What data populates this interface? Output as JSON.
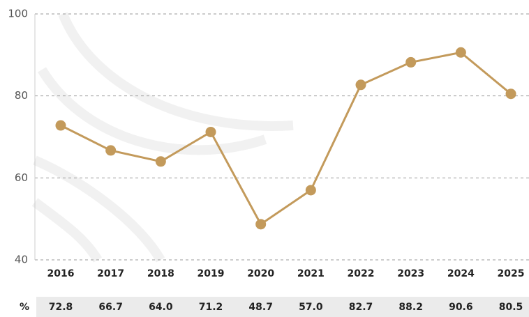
{
  "chart_data": {
    "type": "line",
    "categories": [
      "2016",
      "2017",
      "2018",
      "2019",
      "2020",
      "2021",
      "2022",
      "2023",
      "2024",
      "2025"
    ],
    "series": [
      {
        "name": "%",
        "color": "#c39a5b",
        "values": [
          72.8,
          66.7,
          64.0,
          71.2,
          48.7,
          57.0,
          82.7,
          88.2,
          90.6,
          80.5
        ],
        "value_labels": [
          "72.8",
          "66.7",
          "64.0",
          "71.2",
          "48.7",
          "57.0",
          "82.7",
          "88.2",
          "90.6",
          "80.5"
        ]
      }
    ],
    "ylim": [
      40,
      100
    ],
    "yticks": [
      40,
      60,
      80,
      100
    ],
    "grid": true
  }
}
